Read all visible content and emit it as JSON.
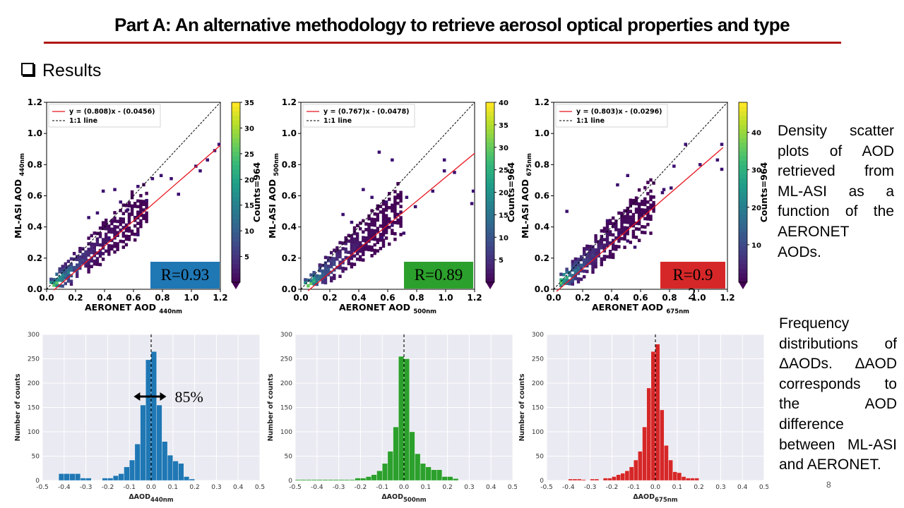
{
  "page": {
    "title": "Part A: An alternative methodology to retrieve aerosol optical properties and type",
    "section_heading": "Results",
    "scatter_caption": "Density scatter plots of AOD retrieved from ML-ASI as a function of the AERONET AODs.",
    "hist_caption": "Frequency distributions of ΔAODs. ΔAOD corresponds to the AOD difference between ML-ASI and AERONET.",
    "page_number": "8"
  },
  "colors": {
    "regression_line": "#e8141e",
    "badge_440": "#1f77b4",
    "badge_500": "#2ca02c",
    "badge_675": "#d62728",
    "hist_440": "#1f77b4",
    "hist_500": "#2ca02c",
    "hist_675": "#d62728",
    "rule": "#b01515"
  },
  "chart_data": [
    {
      "type": "heatmap",
      "id": "scatter440",
      "xlabel_main": "AERONET AOD",
      "xlabel_sub": "440nm",
      "ylabel_main": "ML-ASI AOD",
      "ylabel_sub": "440nm",
      "xlim": [
        0,
        1.2
      ],
      "ylim": [
        0,
        1.2
      ],
      "xticks": [
        "0.0",
        "0.2",
        "0.4",
        "0.6",
        "0.8",
        "1.0",
        "1.2"
      ],
      "yticks": [
        "0.0",
        "0.2",
        "0.4",
        "0.6",
        "0.8",
        "1.0",
        "1.2"
      ],
      "legend": [
        "y = (0.808)x - (0.0456)",
        "1:1 line"
      ],
      "legend_position": "top-left",
      "slope": 0.808,
      "intercept": -0.0456,
      "fit_range": [
        0.05,
        1.2
      ],
      "colorbar_label": "Counts=964",
      "colorbar_ticks": [
        "5",
        "10",
        "15",
        "20",
        "25",
        "30",
        "35"
      ],
      "colorbar_max": 35,
      "r_label": "R=0.93",
      "spread": 0.05,
      "outliers": [
        [
          0.38,
          0.62
        ],
        [
          0.46,
          0.63
        ],
        [
          0.62,
          0.65
        ],
        [
          0.5,
          0.55
        ],
        [
          0.72,
          0.7
        ],
        [
          0.78,
          0.72
        ],
        [
          0.85,
          0.7
        ],
        [
          0.9,
          0.6
        ],
        [
          1.02,
          0.78
        ],
        [
          1.05,
          0.75
        ],
        [
          1.1,
          0.82
        ],
        [
          1.18,
          0.92
        ],
        [
          1.15,
          0.88
        ],
        [
          0.62,
          0.34
        ],
        [
          0.36,
          0.22
        ],
        [
          0.42,
          0.32
        ],
        [
          0.68,
          0.56
        ],
        [
          0.28,
          0.45
        ],
        [
          0.55,
          0.5
        ],
        [
          0.34,
          0.48
        ]
      ],
      "r_badge": {
        "color": "#1f77b4"
      }
    },
    {
      "type": "heatmap",
      "id": "scatter500",
      "xlabel_main": "AERONET AOD",
      "xlabel_sub": "500nm",
      "ylabel_main": "ML-ASI AOD",
      "ylabel_sub": "500nm",
      "xlim": [
        0,
        1.2
      ],
      "ylim": [
        0,
        1.2
      ],
      "xticks": [
        "0.0",
        "0.2",
        "0.4",
        "0.6",
        "0.8",
        "1.0",
        "1.2"
      ],
      "yticks": [
        "0.0",
        "0.2",
        "0.4",
        "0.6",
        "0.8",
        "1.0",
        "1.2"
      ],
      "legend": [
        "y = (0.767)x - (0.0478)",
        "1:1 line"
      ],
      "legend_position": "top-left",
      "slope": 0.767,
      "intercept": -0.0478,
      "fit_range": [
        0.05,
        1.2
      ],
      "colorbar_label": "Counts=964",
      "colorbar_ticks": [
        "5",
        "10",
        "15",
        "20",
        "25",
        "30",
        "35",
        "40"
      ],
      "colorbar_max": 40,
      "r_label": "R=0.89",
      "spread": 0.06,
      "outliers": [
        [
          0.53,
          0.87
        ],
        [
          0.62,
          0.82
        ],
        [
          0.98,
          0.82
        ],
        [
          1.05,
          0.74
        ],
        [
          1.18,
          0.62
        ],
        [
          1.17,
          0.54
        ],
        [
          0.98,
          0.75
        ],
        [
          0.72,
          0.58
        ],
        [
          0.78,
          0.52
        ],
        [
          0.9,
          0.62
        ],
        [
          0.42,
          0.63
        ],
        [
          0.48,
          0.58
        ],
        [
          0.28,
          0.47
        ],
        [
          0.34,
          0.42
        ],
        [
          0.62,
          0.4
        ],
        [
          0.55,
          0.32
        ],
        [
          0.7,
          0.35
        ],
        [
          0.58,
          0.55
        ]
      ],
      "r_badge": {
        "color": "#2ca02c"
      }
    },
    {
      "type": "heatmap",
      "id": "scatter675",
      "xlabel_main": "AERONET AOD",
      "xlabel_sub": "675nm",
      "ylabel_main": "ML-ASI AOD",
      "ylabel_sub": "675nm",
      "xlim": [
        0,
        1.2
      ],
      "ylim": [
        0,
        1.2
      ],
      "xticks": [
        "0.0",
        "0.2",
        "0.4",
        "0.6",
        "0.8",
        "1.0",
        "1.2"
      ],
      "yticks": [
        "0.0",
        "0.2",
        "0.4",
        "0.6",
        "0.8",
        "1.0",
        "1.2"
      ],
      "legend": [
        "y = (0.803)x - (0.0296)",
        "1:1 line"
      ],
      "legend_position": "top-left",
      "slope": 0.803,
      "intercept": -0.0296,
      "fit_range": [
        0.02,
        1.17
      ],
      "colorbar_label": "Counts=964",
      "colorbar_ticks": [
        "10",
        "20",
        "30",
        "40"
      ],
      "colorbar_max": 48,
      "r_label": "R=0.9",
      "r_label_extra": "2",
      "spread": 0.05,
      "outliers": [
        [
          0.08,
          0.49
        ],
        [
          0.43,
          0.66
        ],
        [
          0.5,
          0.72
        ],
        [
          0.9,
          0.92
        ],
        [
          0.82,
          0.78
        ],
        [
          1.0,
          0.79
        ],
        [
          1.12,
          0.82
        ],
        [
          1.15,
          0.76
        ],
        [
          1.15,
          0.92
        ],
        [
          0.75,
          0.63
        ],
        [
          0.8,
          0.64
        ],
        [
          0.74,
          0.61
        ],
        [
          0.5,
          0.3
        ],
        [
          0.55,
          0.26
        ],
        [
          0.36,
          0.43
        ],
        [
          0.44,
          0.35
        ]
      ],
      "r_badge": {
        "color": "#d62728"
      }
    },
    {
      "type": "bar",
      "id": "hist440",
      "xlabel_main": "ΔAOD",
      "xlabel_sub": "440nm",
      "ylabel": "Number of counts",
      "xlim": [
        -0.5,
        0.5
      ],
      "ylim": [
        0,
        300
      ],
      "xticks": [
        "-0.5",
        "-0.4",
        "-0.3",
        "-0.2",
        "-0.1",
        "0.0",
        "0.1",
        "0.2",
        "0.3",
        "0.4",
        "0.5"
      ],
      "yticks": [
        "0",
        "50",
        "100",
        "150",
        "200",
        "250",
        "300"
      ],
      "bin_width": 0.025,
      "bin_starts": [
        -0.425,
        -0.4,
        -0.375,
        -0.35,
        -0.325,
        -0.3,
        -0.275,
        -0.25,
        -0.225,
        -0.2,
        -0.175,
        -0.15,
        -0.125,
        -0.1,
        -0.075,
        -0.05,
        -0.025,
        0.0,
        0.025,
        0.05,
        0.075,
        0.1,
        0.125,
        0.15,
        0.175
      ],
      "counts": [
        14,
        14,
        14,
        14,
        5,
        5,
        0,
        0,
        5,
        5,
        10,
        14,
        28,
        42,
        75,
        155,
        248,
        265,
        155,
        80,
        52,
        40,
        35,
        8,
        3
      ],
      "grid": true,
      "annotation": "85%"
    },
    {
      "type": "bar",
      "id": "hist500",
      "xlabel_main": "ΔAOD",
      "xlabel_sub": "500nm",
      "ylabel": "Number of counts",
      "xlim": [
        -0.5,
        0.5
      ],
      "ylim": [
        0,
        300
      ],
      "xticks": [
        "-0.5",
        "-0.4",
        "-0.3",
        "-0.2",
        "-0.1",
        "0.0",
        "0.1",
        "0.2",
        "0.3",
        "0.4",
        "0.5"
      ],
      "yticks": [
        "0",
        "50",
        "100",
        "150",
        "200",
        "250",
        "300"
      ],
      "bin_width": 0.025,
      "bin_starts": [
        -0.5,
        -0.475,
        -0.45,
        -0.425,
        -0.4,
        -0.375,
        -0.35,
        -0.325,
        -0.3,
        -0.275,
        -0.25,
        -0.225,
        -0.2,
        -0.175,
        -0.15,
        -0.125,
        -0.1,
        -0.075,
        -0.05,
        -0.025,
        0.0,
        0.025,
        0.05,
        0.075,
        0.1,
        0.125,
        0.15,
        0.175,
        0.2,
        0.225
      ],
      "counts": [
        2,
        2,
        2,
        2,
        2,
        2,
        2,
        2,
        2,
        2,
        2,
        5,
        5,
        8,
        12,
        20,
        35,
        60,
        110,
        255,
        250,
        100,
        55,
        35,
        28,
        22,
        22,
        8,
        8,
        4
      ],
      "grid": true
    },
    {
      "type": "bar",
      "id": "hist675",
      "xlabel_main": "ΔAOD",
      "xlabel_sub": "675nm",
      "ylabel": "Number of counts",
      "xlim": [
        -0.5,
        0.5
      ],
      "ylim": [
        0,
        300
      ],
      "xticks": [
        "-0.5",
        "-0.4",
        "-0.3",
        "-0.2",
        "-0.1",
        "0.0",
        "0.1",
        "0.2",
        "0.3",
        "0.4",
        "0.5"
      ],
      "yticks": [
        "0",
        "50",
        "100",
        "150",
        "200",
        "250",
        "300"
      ],
      "bin_width": 0.02,
      "bin_starts": [
        -0.4,
        -0.38,
        -0.36,
        -0.34,
        -0.3,
        -0.28,
        -0.24,
        -0.22,
        -0.2,
        -0.18,
        -0.16,
        -0.14,
        -0.12,
        -0.1,
        -0.08,
        -0.06,
        -0.04,
        -0.02,
        0.0,
        0.02,
        0.04,
        0.06,
        0.08,
        0.1,
        0.12,
        0.14,
        0.16,
        0.18
      ],
      "counts": [
        3,
        3,
        3,
        2,
        3,
        3,
        5,
        5,
        8,
        12,
        15,
        20,
        28,
        42,
        60,
        110,
        190,
        265,
        280,
        145,
        72,
        42,
        18,
        16,
        8,
        5,
        5,
        5
      ],
      "grid": true
    }
  ]
}
